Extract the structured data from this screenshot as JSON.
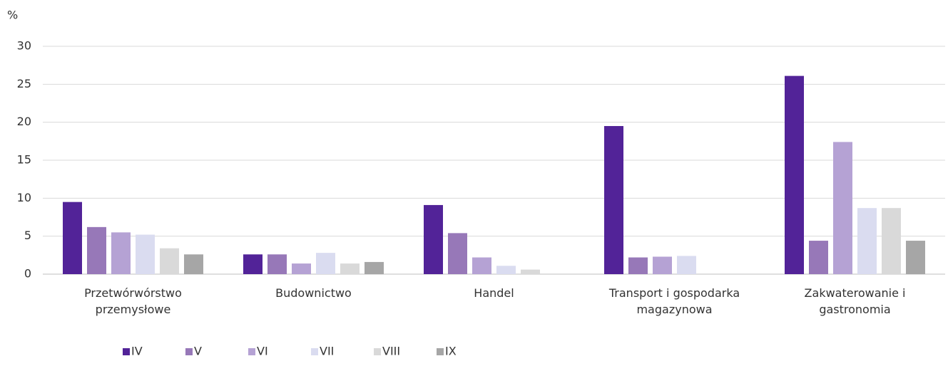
{
  "chart_data": {
    "type": "bar",
    "y_label": "%",
    "categories": [
      "Przetwórwórstwo przemysłowe",
      "Budownictwo",
      "Handel",
      "Transport i gospodarka magazynowa",
      "Zakwaterowanie i gastronomia"
    ],
    "series": [
      {
        "name": "IV",
        "color": "#522398",
        "values": [
          9.5,
          2.6,
          9.1,
          19.5,
          26.1
        ]
      },
      {
        "name": "V",
        "color": "#9778b8",
        "values": [
          6.2,
          2.6,
          5.4,
          2.2,
          4.4
        ]
      },
      {
        "name": "VI",
        "color": "#b5a2d4",
        "values": [
          5.5,
          1.4,
          2.2,
          2.3,
          17.4
        ]
      },
      {
        "name": "VII",
        "color": "#dadcf0",
        "values": [
          5.2,
          2.8,
          1.1,
          2.4,
          8.7
        ]
      },
      {
        "name": "VIII",
        "color": "#d9d9d9",
        "values": [
          3.4,
          1.4,
          0.6,
          0,
          8.7
        ]
      },
      {
        "name": "IX",
        "color": "#a6a6a6",
        "values": [
          2.6,
          1.6,
          0,
          0,
          4.4
        ]
      }
    ],
    "ylim": [
      0,
      30
    ],
    "yticks": [
      0,
      5,
      10,
      15,
      20,
      25,
      30
    ],
    "grid": true,
    "legend": "bottom"
  }
}
